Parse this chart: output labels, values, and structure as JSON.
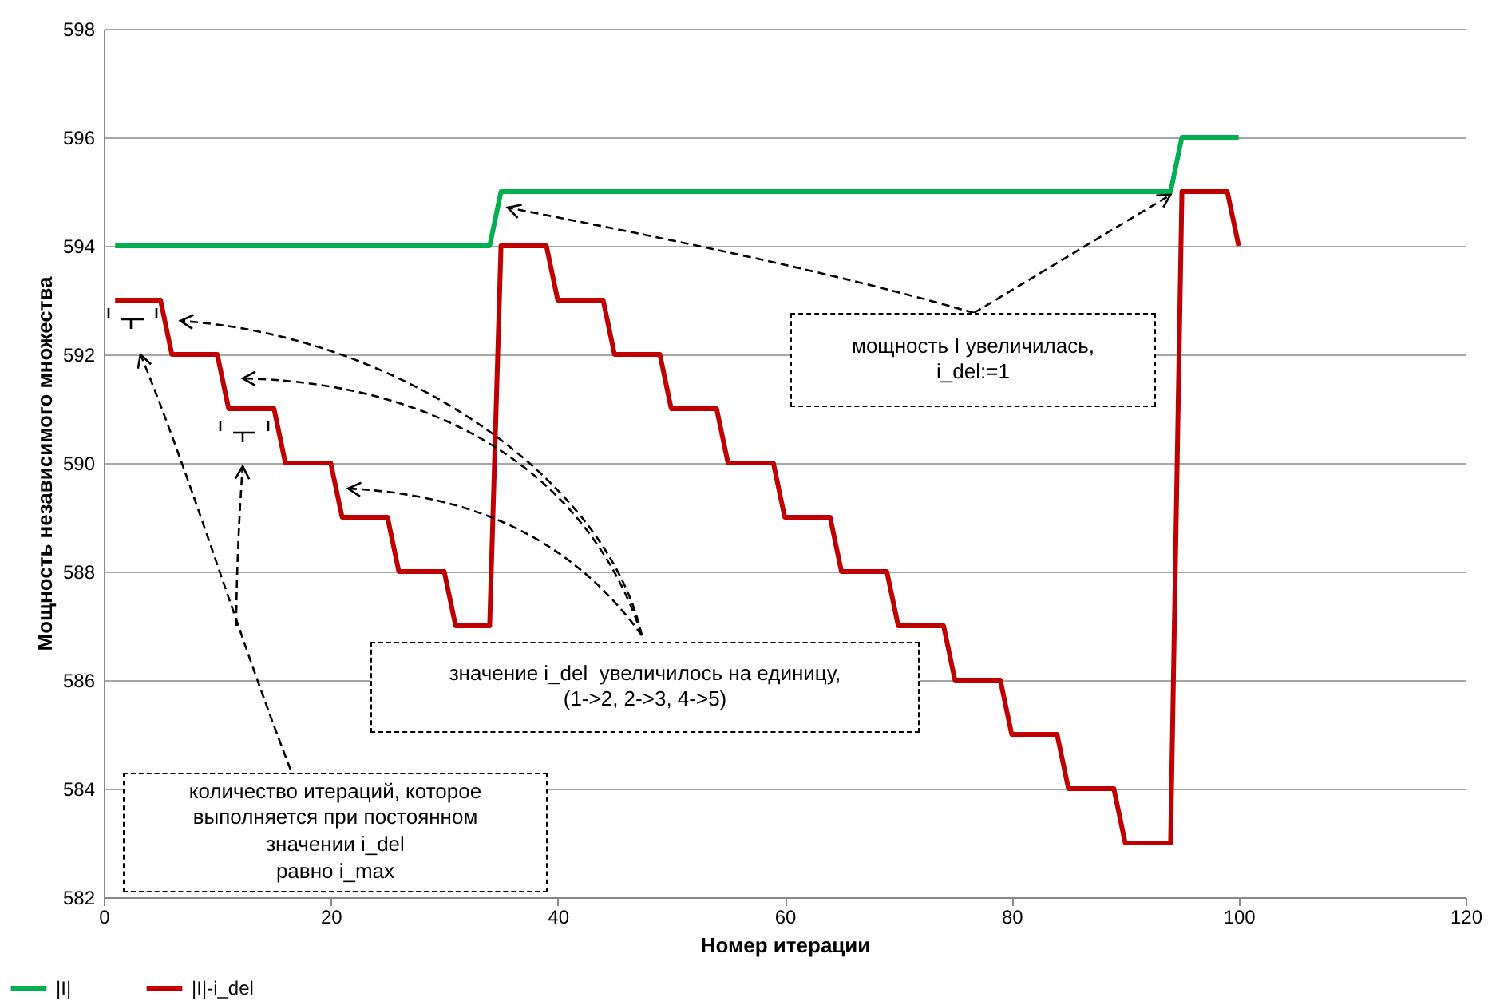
{
  "chart_data": {
    "type": "line",
    "xlabel": "Номер итерации",
    "ylabel": "Мощность независимого множества",
    "xlim": [
      0,
      120
    ],
    "xticks": [
      0,
      20,
      40,
      60,
      80,
      100,
      120
    ],
    "ylim": [
      582,
      598
    ],
    "yticks": [
      582,
      584,
      586,
      588,
      590,
      592,
      594,
      596,
      598
    ],
    "grid": "y",
    "legend": "bottom left",
    "marker": "none",
    "line_style": "solid",
    "series": [
      {
        "name": "|I|",
        "color": "#00b050",
        "x": [
          1,
          34,
          35,
          94,
          95,
          100
        ],
        "values": [
          594,
          594,
          595,
          595,
          596,
          596
        ]
      },
      {
        "name": "|I|-i_del",
        "color": "#c00000",
        "x": [
          1,
          5,
          6,
          10,
          11,
          15,
          16,
          20,
          21,
          25,
          26,
          30,
          31,
          34,
          35,
          39,
          40,
          44,
          45,
          49,
          50,
          54,
          55,
          59,
          60,
          64,
          65,
          69,
          70,
          74,
          75,
          79,
          80,
          84,
          85,
          89,
          90,
          94,
          95,
          99,
          100
        ],
        "values": [
          593,
          593,
          592,
          592,
          591,
          591,
          590,
          590,
          589,
          589,
          588,
          588,
          587,
          587,
          594,
          594,
          593,
          593,
          592,
          592,
          591,
          591,
          590,
          590,
          589,
          589,
          588,
          588,
          587,
          587,
          586,
          586,
          585,
          585,
          584,
          584,
          583,
          583,
          595,
          595,
          594
        ]
      }
    ],
    "annotations": [
      "значение i_del  увеличилось на единицу,\n(1->2, 2->3, 4->5)",
      {
        "text": "мощность I увеличилась,\ni_del:=1",
        "x": 94,
        "y": 595
      },
      "количество итераций, которое\nвыполняется при постоянном\nзначении i_del\nравно i_max"
    ]
  }
}
